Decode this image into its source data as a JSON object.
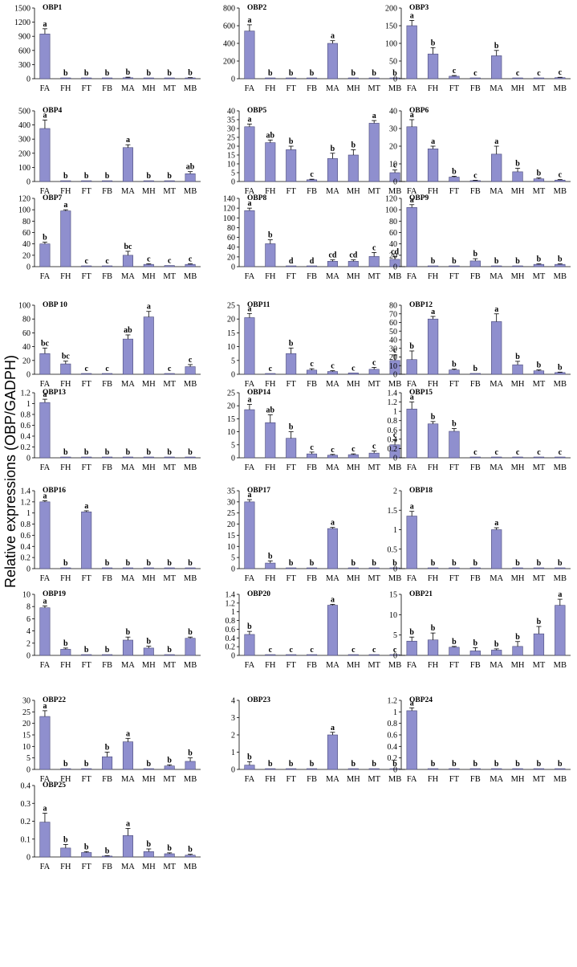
{
  "figure": {
    "ylabel": "Relative expressions (OBP/GADPH)",
    "bar_color": "#8f8fce",
    "categories": [
      "FA",
      "FH",
      "FT",
      "FB",
      "MA",
      "MH",
      "MT",
      "MB"
    ]
  },
  "chart_data": [
    {
      "type": "bar",
      "title": "OBP1",
      "categories": [
        "FA",
        "FH",
        "FT",
        "FB",
        "MA",
        "MH",
        "MT",
        "MB"
      ],
      "values": [
        950,
        5,
        5,
        5,
        20,
        5,
        5,
        15
      ],
      "errors": [
        110,
        0,
        0,
        0,
        12,
        0,
        0,
        8
      ],
      "labels": [
        "a",
        "b",
        "b",
        "b",
        "b",
        "b",
        "b",
        "b"
      ],
      "ylim": [
        0,
        1500
      ],
      "yticks": [
        "0",
        "300",
        "600",
        "900",
        "1200",
        "1500"
      ]
    },
    {
      "type": "bar",
      "title": "OBP2",
      "categories": [
        "FA",
        "FH",
        "FT",
        "FB",
        "MA",
        "MH",
        "MT",
        "MB"
      ],
      "values": [
        540,
        2,
        2,
        2,
        400,
        2,
        2,
        2
      ],
      "errors": [
        70,
        0,
        0,
        0,
        30,
        0,
        0,
        0
      ],
      "labels": [
        "a",
        "b",
        "b",
        "b",
        "a",
        "b",
        "b",
        "b"
      ],
      "ylim": [
        0,
        800
      ],
      "yticks": [
        "0",
        "200",
        "400",
        "600",
        "800"
      ]
    },
    {
      "type": "bar",
      "title": "OBP3",
      "categories": [
        "FA",
        "FH",
        "FT",
        "FB",
        "MA",
        "MH",
        "MT",
        "MB"
      ],
      "values": [
        150,
        70,
        7,
        1,
        65,
        2,
        1,
        3
      ],
      "errors": [
        15,
        18,
        2,
        0,
        15,
        0,
        0,
        1
      ],
      "labels": [
        "a",
        "b",
        "c",
        "c",
        "b",
        "c",
        "c",
        "c"
      ],
      "ylim": [
        0,
        200
      ],
      "yticks": [
        "0",
        "50",
        "100",
        "150",
        "200"
      ]
    },
    {
      "type": "bar",
      "title": "OBP4",
      "categories": [
        "FA",
        "FH",
        "FT",
        "FB",
        "MA",
        "MH",
        "MT",
        "MB"
      ],
      "values": [
        375,
        2,
        1,
        1,
        240,
        1,
        1,
        55
      ],
      "errors": [
        60,
        0,
        0,
        0,
        20,
        0,
        0,
        15
      ],
      "labels": [
        "a",
        "b",
        "b",
        "b",
        "a",
        "b",
        "b",
        "ab"
      ],
      "ylim": [
        0,
        500
      ],
      "yticks": [
        "0",
        "100",
        "200",
        "300",
        "400",
        "500"
      ]
    },
    {
      "type": "bar",
      "title": "OBP5",
      "categories": [
        "FA",
        "FH",
        "FT",
        "FB",
        "MA",
        "MH",
        "MT",
        "MB"
      ],
      "values": [
        31,
        22,
        18,
        1,
        13,
        15,
        33,
        5
      ],
      "errors": [
        1.5,
        1.5,
        2,
        0.3,
        3,
        3,
        1.5,
        1.5
      ],
      "labels": [
        "a",
        "ab",
        "b",
        "c",
        "b",
        "b",
        "a",
        "c"
      ],
      "ylim": [
        0,
        40
      ],
      "yticks": [
        "0",
        "5",
        "10",
        "15",
        "20",
        "25",
        "30",
        "35",
        "40"
      ]
    },
    {
      "type": "bar",
      "title": "OBP6",
      "categories": [
        "FA",
        "FH",
        "FT",
        "FB",
        "MA",
        "MH",
        "MT",
        "MB"
      ],
      "values": [
        31,
        18.5,
        2.5,
        0.5,
        15.5,
        5.5,
        1.5,
        0.8
      ],
      "errors": [
        4,
        1.5,
        0.5,
        0.2,
        4.5,
        2,
        0.5,
        0.3
      ],
      "labels": [
        "a",
        "a",
        "b",
        "c",
        "a",
        "b",
        "b",
        "c"
      ],
      "ylim": [
        0,
        40
      ],
      "yticks": [
        "0",
        "10",
        "20",
        "30",
        "40"
      ]
    },
    {
      "type": "bar",
      "title": "OBP7",
      "categories": [
        "FA",
        "FH",
        "FT",
        "FB",
        "MA",
        "MH",
        "MT",
        "MB"
      ],
      "values": [
        40,
        98,
        1,
        1,
        20,
        4,
        2,
        4
      ],
      "errors": [
        3,
        2,
        0,
        0,
        7,
        1,
        0,
        1
      ],
      "labels": [
        "b",
        "a",
        "c",
        "c",
        "bc",
        "c",
        "c",
        "c"
      ],
      "ylim": [
        0,
        120
      ],
      "yticks": [
        "0",
        "20",
        "40",
        "60",
        "80",
        "100",
        "120"
      ]
    },
    {
      "type": "bar",
      "title": "OBP8",
      "categories": [
        "FA",
        "FH",
        "FT",
        "FB",
        "MA",
        "MH",
        "MT",
        "MB"
      ],
      "values": [
        115,
        47,
        1,
        1,
        11,
        11,
        21,
        15
      ],
      "errors": [
        5,
        8,
        0,
        0,
        3,
        3,
        8,
        6
      ],
      "labels": [
        "a",
        "b",
        "d",
        "d",
        "cd",
        "cd",
        "c",
        "cd"
      ],
      "ylim": [
        0,
        140
      ],
      "yticks": [
        "0",
        "20",
        "40",
        "60",
        "80",
        "100",
        "120",
        "140"
      ]
    },
    {
      "type": "bar",
      "title": "OBP9",
      "categories": [
        "FA",
        "FH",
        "FT",
        "FB",
        "MA",
        "MH",
        "MT",
        "MB"
      ],
      "values": [
        104,
        1,
        1,
        10,
        1,
        1,
        4,
        4
      ],
      "errors": [
        5,
        0,
        0,
        4,
        0,
        0,
        1,
        1
      ],
      "labels": [
        "a",
        "b",
        "b",
        "b",
        "b",
        "b",
        "b",
        "b"
      ],
      "ylim": [
        0,
        120
      ],
      "yticks": [
        "0",
        "20",
        "40",
        "60",
        "80",
        "100",
        "120"
      ]
    },
    {
      "type": "bar",
      "title": "OBP 10",
      "categories": [
        "FA",
        "FH",
        "FT",
        "FB",
        "MA",
        "MH",
        "MT",
        "MB"
      ],
      "values": [
        30,
        15,
        1,
        0.5,
        51,
        83,
        0.5,
        11
      ],
      "errors": [
        8,
        4,
        0,
        0,
        6,
        8,
        0,
        3
      ],
      "labels": [
        "bc",
        "bc",
        "c",
        "c",
        "ab",
        "a",
        "c",
        "c"
      ],
      "ylim": [
        0,
        100
      ],
      "yticks": [
        "0",
        "20",
        "40",
        "60",
        "80",
        "100"
      ]
    },
    {
      "type": "bar",
      "title": "OBP11",
      "categories": [
        "FA",
        "FH",
        "FT",
        "FB",
        "MA",
        "MH",
        "MT",
        "MB"
      ],
      "values": [
        20.5,
        0.2,
        7.5,
        1.5,
        1,
        0.5,
        1.8,
        5
      ],
      "errors": [
        1.5,
        0,
        2,
        0.5,
        0.3,
        0,
        0.7,
        2
      ],
      "labels": [
        "a",
        "c",
        "b",
        "c",
        "c",
        "c",
        "c",
        "c"
      ],
      "ylim": [
        0,
        25
      ],
      "yticks": [
        "0",
        "5",
        "10",
        "15",
        "20",
        "25"
      ]
    },
    {
      "type": "bar",
      "title": "OBP12",
      "categories": [
        "FA",
        "FH",
        "FT",
        "FB",
        "MA",
        "MH",
        "MT",
        "MB"
      ],
      "values": [
        17,
        64,
        5,
        1,
        61,
        11,
        4,
        2
      ],
      "errors": [
        10,
        3,
        1,
        0,
        9,
        4,
        1,
        0.5
      ],
      "labels": [
        "b",
        "a",
        "b",
        "b",
        "a",
        "b",
        "b",
        "b"
      ],
      "ylim": [
        0,
        80
      ],
      "yticks": [
        "0",
        "10",
        "20",
        "30",
        "40",
        "50",
        "60",
        "70",
        "80"
      ]
    },
    {
      "type": "bar",
      "title": "OBP13",
      "categories": [
        "FA",
        "FH",
        "FT",
        "FB",
        "MA",
        "MH",
        "MT",
        "MB"
      ],
      "values": [
        1.02,
        0,
        0,
        0,
        0,
        0,
        0,
        0
      ],
      "errors": [
        0.06,
        0,
        0,
        0,
        0,
        0,
        0,
        0
      ],
      "labels": [
        "a",
        "b",
        "b",
        "b",
        "b",
        "b",
        "b",
        "b"
      ],
      "ylim": [
        0,
        1.2
      ],
      "yticks": [
        "0",
        "0.2",
        "0.4",
        "0.6",
        "0.8",
        "1",
        "1.2"
      ]
    },
    {
      "type": "bar",
      "title": "OBP14",
      "categories": [
        "FA",
        "FH",
        "FT",
        "FB",
        "MA",
        "MH",
        "MT",
        "MB"
      ],
      "values": [
        18.5,
        13.5,
        7.5,
        1.5,
        1,
        1.2,
        1.8,
        5
      ],
      "errors": [
        2,
        3,
        2.5,
        0.7,
        0.3,
        0.3,
        0.8,
        2
      ],
      "labels": [
        "a",
        "ab",
        "b",
        "c",
        "c",
        "c",
        "c",
        "c"
      ],
      "ylim": [
        0,
        25
      ],
      "yticks": [
        "0",
        "5",
        "10",
        "15",
        "20",
        "25"
      ]
    },
    {
      "type": "bar",
      "title": "OBP15",
      "categories": [
        "FA",
        "FH",
        "FT",
        "FB",
        "MA",
        "MH",
        "MT",
        "MB"
      ],
      "values": [
        1.05,
        0.73,
        0.57,
        0,
        0,
        0,
        0,
        0
      ],
      "errors": [
        0.15,
        0.05,
        0.06,
        0,
        0,
        0,
        0,
        0
      ],
      "labels": [
        "a",
        "b",
        "b",
        "c",
        "c",
        "c",
        "c",
        "c"
      ],
      "ylim": [
        0,
        1.4
      ],
      "yticks": [
        "0",
        "0.2",
        "0.4",
        "0.6",
        "0.8",
        "1",
        "1.2",
        "1.4"
      ]
    },
    {
      "type": "bar",
      "title": "OBP16",
      "categories": [
        "FA",
        "FH",
        "FT",
        "FB",
        "MA",
        "MH",
        "MT",
        "MB"
      ],
      "values": [
        1.2,
        0,
        1.02,
        0,
        0,
        0,
        0,
        0
      ],
      "errors": [
        0.02,
        0,
        0.02,
        0,
        0,
        0,
        0,
        0
      ],
      "labels": [
        "a",
        "b",
        "a",
        "b",
        "b",
        "b",
        "b",
        "b"
      ],
      "ylim": [
        0,
        1.4
      ],
      "yticks": [
        "0",
        "0.2",
        "0.4",
        "0.6",
        "0.8",
        "1",
        "1.2",
        "1.4"
      ]
    },
    {
      "type": "bar",
      "title": "OBP17",
      "categories": [
        "FA",
        "FH",
        "FT",
        "FB",
        "MA",
        "MH",
        "MT",
        "MB"
      ],
      "values": [
        30,
        2.5,
        0.2,
        0.2,
        18,
        0.2,
        0.2,
        0.2
      ],
      "errors": [
        1,
        1,
        0,
        0,
        0.5,
        0,
        0,
        0
      ],
      "labels": [
        "a",
        "b",
        "b",
        "b",
        "a",
        "b",
        "b",
        "b"
      ],
      "ylim": [
        0,
        35
      ],
      "yticks": [
        "0",
        "5",
        "10",
        "15",
        "20",
        "25",
        "30",
        "35"
      ]
    },
    {
      "type": "bar",
      "title": "OBP18",
      "categories": [
        "FA",
        "FH",
        "FT",
        "FB",
        "MA",
        "MH",
        "MT",
        "MB"
      ],
      "values": [
        1.35,
        0,
        0,
        0,
        1,
        0,
        0,
        0
      ],
      "errors": [
        0.12,
        0,
        0,
        0,
        0.05,
        0,
        0,
        0
      ],
      "labels": [
        "a",
        "b",
        "b",
        "b",
        "a",
        "b",
        "b",
        "b"
      ],
      "ylim": [
        0,
        2
      ],
      "yticks": [
        "0",
        "0.5",
        "1",
        "1.5",
        "2"
      ]
    },
    {
      "type": "bar",
      "title": "OBP19",
      "categories": [
        "FA",
        "FH",
        "FT",
        "FB",
        "MA",
        "MH",
        "MT",
        "MB"
      ],
      "values": [
        7.8,
        1,
        0.1,
        0.1,
        2.5,
        1.2,
        0.1,
        2.8
      ],
      "errors": [
        0.3,
        0.2,
        0,
        0,
        0.5,
        0.3,
        0,
        0.2
      ],
      "labels": [
        "a",
        "b",
        "b",
        "b",
        "b",
        "b",
        "b",
        "b"
      ],
      "ylim": [
        0,
        10
      ],
      "yticks": [
        "0",
        "2",
        "4",
        "6",
        "8",
        "10"
      ]
    },
    {
      "type": "bar",
      "title": "OBP20",
      "categories": [
        "FA",
        "FH",
        "FT",
        "FB",
        "MA",
        "MH",
        "MT",
        "MB"
      ],
      "values": [
        0.48,
        0,
        0,
        0,
        1.15,
        0,
        0,
        0
      ],
      "errors": [
        0.07,
        0,
        0,
        0,
        0.02,
        0,
        0,
        0
      ],
      "labels": [
        "b",
        "c",
        "c",
        "c",
        "a",
        "c",
        "c",
        "c"
      ],
      "ylim": [
        0,
        1.4
      ],
      "yticks": [
        "0",
        "0.2",
        "0.4",
        "0.6",
        "0.8",
        "1",
        "1.2",
        "1.4"
      ]
    },
    {
      "type": "bar",
      "title": "OBP21",
      "categories": [
        "FA",
        "FH",
        "FT",
        "FB",
        "MA",
        "MH",
        "MT",
        "MB"
      ],
      "values": [
        3.5,
        3.8,
        2,
        1.1,
        1.3,
        2.2,
        5.3,
        12.3
      ],
      "errors": [
        1,
        1.7,
        0.2,
        0.8,
        0.3,
        1.2,
        1.8,
        1.5
      ],
      "labels": [
        "b",
        "b",
        "b",
        "b",
        "b",
        "b",
        "b",
        "a"
      ],
      "ylim": [
        0,
        15
      ],
      "yticks": [
        "0",
        "5",
        "10",
        "15"
      ]
    },
    {
      "type": "bar",
      "title": "OBP22",
      "categories": [
        "FA",
        "FH",
        "FT",
        "FB",
        "MA",
        "MH",
        "MT",
        "MB"
      ],
      "values": [
        23,
        0.2,
        0.2,
        5.5,
        12,
        0.2,
        1.5,
        3.5
      ],
      "errors": [
        2.5,
        0,
        0,
        2,
        1.5,
        0,
        0.5,
        1.5
      ],
      "labels": [
        "a",
        "b",
        "b",
        "b",
        "a",
        "b",
        "b",
        "b"
      ],
      "ylim": [
        0,
        30
      ],
      "yticks": [
        "0",
        "5",
        "10",
        "15",
        "20",
        "25",
        "30"
      ]
    },
    {
      "type": "bar",
      "title": "OBP23",
      "categories": [
        "FA",
        "FH",
        "FT",
        "FB",
        "MA",
        "MH",
        "MT",
        "MB"
      ],
      "values": [
        0.25,
        0,
        0,
        0,
        2,
        0,
        0,
        0
      ],
      "errors": [
        0.2,
        0,
        0,
        0,
        0.15,
        0,
        0,
        0
      ],
      "labels": [
        "b",
        "b",
        "b",
        "b",
        "a",
        "b",
        "b",
        "b"
      ],
      "ylim": [
        0,
        4
      ],
      "yticks": [
        "0",
        "1",
        "2",
        "3",
        "4"
      ]
    },
    {
      "type": "bar",
      "title": "OBP24",
      "categories": [
        "FA",
        "FH",
        "FT",
        "FB",
        "MA",
        "MH",
        "MT",
        "MB"
      ],
      "values": [
        1.02,
        0,
        0,
        0,
        0,
        0,
        0,
        0
      ],
      "errors": [
        0.05,
        0,
        0,
        0,
        0,
        0,
        0,
        0
      ],
      "labels": [
        "a",
        "b",
        "b",
        "b",
        "b",
        "b",
        "b",
        "b"
      ],
      "ylim": [
        0,
        1.2
      ],
      "yticks": [
        "0",
        "0.2",
        "0.4",
        "0.6",
        "0.8",
        "1",
        "1.2"
      ]
    },
    {
      "type": "bar",
      "title": "OBP25",
      "categories": [
        "FA",
        "FH",
        "FT",
        "FB",
        "MA",
        "MH",
        "MT",
        "MB"
      ],
      "values": [
        0.195,
        0.05,
        0.025,
        0.005,
        0.12,
        0.03,
        0.018,
        0.01
      ],
      "errors": [
        0.05,
        0.02,
        0.005,
        0.002,
        0.04,
        0.015,
        0.005,
        0.005
      ],
      "labels": [
        "a",
        "b",
        "b",
        "b",
        "a",
        "b",
        "b",
        "b"
      ],
      "ylim": [
        0,
        0.4
      ],
      "yticks": [
        "0",
        "0.1",
        "0.2",
        "0.3",
        "0.4"
      ]
    }
  ]
}
